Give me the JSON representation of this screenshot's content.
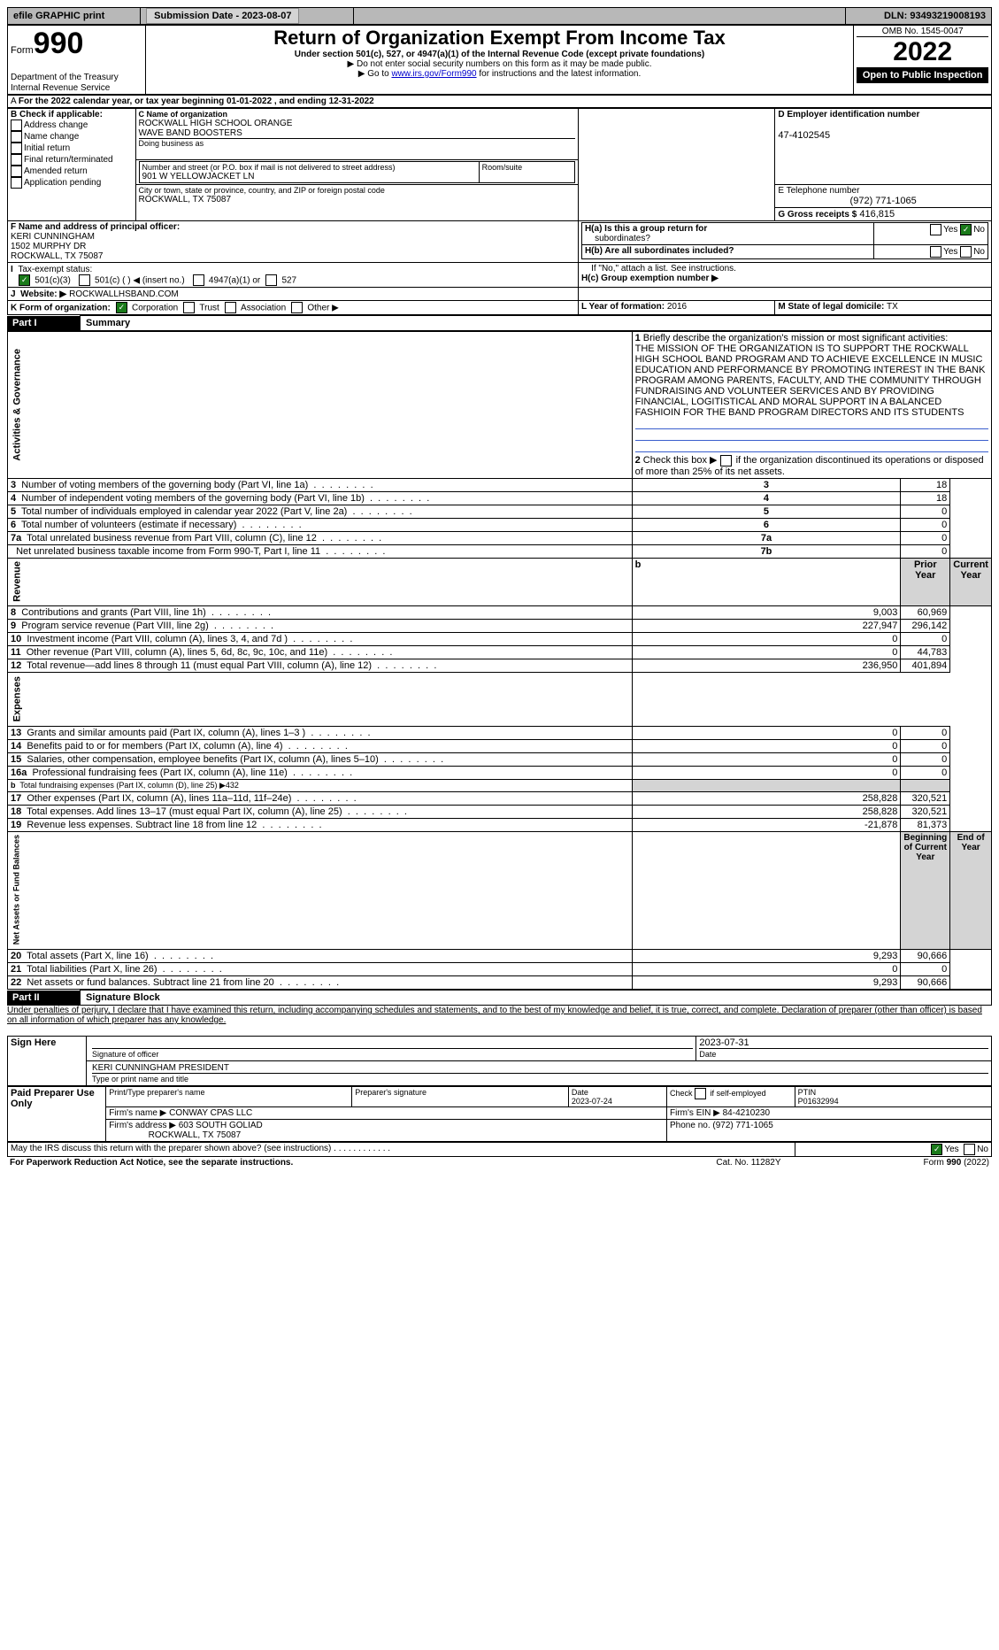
{
  "topbar": {
    "efile": "efile GRAPHIC print",
    "sub": "Submission Date - 2023-08-07",
    "dln": "DLN: 93493219008193"
  },
  "hdr": {
    "formword": "Form",
    "formnum": "990",
    "title": "Return of Organization Exempt From Income Tax",
    "sub1": "Under section 501(c), 527, or 4947(a)(1) of the Internal Revenue Code (except private foundations)",
    "sub2": "▶ Do not enter social security numbers on this form as it may be made public.",
    "sub3": "▶ Go to ",
    "sub3link": "www.irs.gov/Form990",
    "sub3b": " for instructions and the latest information.",
    "dept": "Department of the Treasury",
    "irs": "Internal Revenue Service",
    "omb": "OMB No. 1545-0047",
    "year": "2022",
    "open": "Open to Public Inspection"
  },
  "A": {
    "line": "For the 2022 calendar year, or tax year beginning 01-01-2022    , and ending 12-31-2022"
  },
  "B": {
    "hdr": "B Check if applicable:",
    "o": [
      "Address change",
      "Name change",
      "Initial return",
      "Final return/terminated",
      "Amended return",
      "Application pending"
    ]
  },
  "C": {
    "namelbl": "C Name of organization",
    "name1": "ROCKWALL HIGH SCHOOL ORANGE",
    "name2": "WAVE BAND BOOSTERS",
    "dba": "Doing business as",
    "streetlbl": "Number and street (or P.O. box if mail is not delivered to street address)",
    "street": "901 W YELLOWJACKET LN",
    "room": "Room/suite",
    "citylbl": "City or town, state or province, country, and ZIP or foreign postal code",
    "city": "ROCKWALL, TX  75087"
  },
  "D": {
    "lbl": "D Employer identification number",
    "val": "47-4102545"
  },
  "E": {
    "lbl": "E Telephone number",
    "val": "(972) 771-1065"
  },
  "G": {
    "lbl": "G Gross receipts $",
    "val": "416,815"
  },
  "F": {
    "lbl": "F  Name and address of principal officer:",
    "n": "KERI CUNNINGHAM",
    "a1": "1502 MURPHY DR",
    "a2": "ROCKWALL, TX  75087"
  },
  "H": {
    "a": "H(a)  Is this a group return for",
    "a2": "subordinates?",
    "b": "H(b)  Are all subordinates included?",
    "bnote": "If \"No,\" attach a list. See instructions.",
    "c": "H(c)  Group exemption number ▶",
    "yes": "Yes",
    "no": "No"
  },
  "I": {
    "lbl": "Tax-exempt status:",
    "o1": "501(c)(3)",
    "o2": "501(c) (  ) ◀ (insert no.)",
    "o3": "4947(a)(1) or",
    "o4": "527"
  },
  "J": {
    "lbl": "Website: ▶",
    "val": "ROCKWALLHSBAND.COM"
  },
  "K": {
    "lbl": "K Form of organization:",
    "o": [
      "Corporation",
      "Trust",
      "Association",
      "Other ▶"
    ]
  },
  "L": {
    "lbl": "L Year of formation:",
    "val": "2016"
  },
  "M": {
    "lbl": "M State of legal domicile:",
    "val": "TX"
  },
  "p1": {
    "bar": "Part I",
    "title": "Summary"
  },
  "s1": {
    "lbl": "1",
    "txt": "Briefly describe the organization's mission or most significant activities:",
    "val": "THE MISSION OF THE ORGANIZATION IS TO SUPPORT THE ROCKWALL HIGH SCHOOL BAND PROGRAM AND TO ACHIEVE EXCELLENCE IN MUSIC EDUCATION AND PERFORMANCE BY PROMOTING INTEREST IN THE BANK PROGRAM AMONG PARENTS, FACULTY, AND THE COMMUNITY THROUGH FUNDRAISING AND VOLUNTEER SERVICES AND BY PROVIDING FINANCIAL, LOGITISTICAL AND MORAL SUPPORT IN A BALANCED FASHIOIN FOR THE BAND PROGRAM DIRECTORS AND ITS STUDENTS"
  },
  "s2": {
    "lbl": "2",
    "txt": "Check this box ▶",
    "txt2": "if the organization discontinued its operations or disposed of more than 25% of its net assets."
  },
  "act": {
    "side": "Activities & Governance",
    "rows": [
      {
        "n": "3",
        "t": "Number of voting members of the governing body (Part VI, line 1a)",
        "box": "3",
        "v": "18"
      },
      {
        "n": "4",
        "t": "Number of independent voting members of the governing body (Part VI, line 1b)",
        "box": "4",
        "v": "18"
      },
      {
        "n": "5",
        "t": "Total number of individuals employed in calendar year 2022 (Part V, line 2a)",
        "box": "5",
        "v": "0"
      },
      {
        "n": "6",
        "t": "Total number of volunteers (estimate if necessary)",
        "box": "6",
        "v": "0"
      },
      {
        "n": "7a",
        "t": "Total unrelated business revenue from Part VIII, column (C), line 12",
        "box": "7a",
        "v": "0"
      },
      {
        "n": "",
        "t": "Net unrelated business taxable income from Form 990-T, Part I, line 11",
        "box": "7b",
        "v": "0"
      }
    ]
  },
  "rev": {
    "side": "Revenue",
    "b": "b",
    "ph": "Prior Year",
    "cy": "Current Year",
    "rows": [
      {
        "n": "8",
        "t": "Contributions and grants (Part VIII, line 1h)",
        "p": "9,003",
        "c": "60,969"
      },
      {
        "n": "9",
        "t": "Program service revenue (Part VIII, line 2g)",
        "p": "227,947",
        "c": "296,142"
      },
      {
        "n": "10",
        "t": "Investment income (Part VIII, column (A), lines 3, 4, and 7d )",
        "p": "0",
        "c": "0"
      },
      {
        "n": "11",
        "t": "Other revenue (Part VIII, column (A), lines 5, 6d, 8c, 9c, 10c, and 11e)",
        "p": "0",
        "c": "44,783"
      },
      {
        "n": "12",
        "t": "Total revenue—add lines 8 through 11 (must equal Part VIII, column (A), line 12)",
        "p": "236,950",
        "c": "401,894"
      }
    ]
  },
  "exp": {
    "side": "Expenses",
    "rows": [
      {
        "n": "13",
        "t": "Grants and similar amounts paid (Part IX, column (A), lines 1–3 )",
        "p": "0",
        "c": "0"
      },
      {
        "n": "14",
        "t": "Benefits paid to or for members (Part IX, column (A), line 4)",
        "p": "0",
        "c": "0"
      },
      {
        "n": "15",
        "t": "Salaries, other compensation, employee benefits (Part IX, column (A), lines 5–10)",
        "p": "0",
        "c": "0"
      },
      {
        "n": "16a",
        "t": "Professional fundraising fees (Part IX, column (A), line 11e)",
        "p": "0",
        "c": "0"
      },
      {
        "n": "b",
        "t": "Total fundraising expenses (Part IX, column (D), line 25) ▶432",
        "p": "",
        "c": "",
        "grey": true,
        "small": true
      },
      {
        "n": "17",
        "t": "Other expenses (Part IX, column (A), lines 11a–11d, 11f–24e)",
        "p": "258,828",
        "c": "320,521"
      },
      {
        "n": "18",
        "t": "Total expenses. Add lines 13–17 (must equal Part IX, column (A), line 25)",
        "p": "258,828",
        "c": "320,521"
      },
      {
        "n": "19",
        "t": "Revenue less expenses. Subtract line 18 from line 12",
        "p": "-21,878",
        "c": "81,373"
      }
    ]
  },
  "nab": {
    "side": "Net Assets or Fund Balances",
    "by": "Beginning of Current Year",
    "ey": "End of Year",
    "rows": [
      {
        "n": "20",
        "t": "Total assets (Part X, line 16)",
        "p": "9,293",
        "c": "90,666"
      },
      {
        "n": "21",
        "t": "Total liabilities (Part X, line 26)",
        "p": "0",
        "c": "0"
      },
      {
        "n": "22",
        "t": "Net assets or fund balances. Subtract line 21 from line 20",
        "p": "9,293",
        "c": "90,666"
      }
    ]
  },
  "p2": {
    "bar": "Part II",
    "title": "Signature Block",
    "decl": "Under penalties of perjury, I declare that I have examined this return, including accompanying schedules and statements, and to the best of my knowledge and belief, it is true, correct, and complete. Declaration of preparer (other than officer) is based on all information of which preparer has any knowledge."
  },
  "sign": {
    "here": "Sign Here",
    "siglbl": "Signature of officer",
    "datelbl": "Date",
    "date": "2023-07-31",
    "name": "KERI CUNNINGHAM  PRESIDENT",
    "namelbl": "Type or print name and title"
  },
  "prep": {
    "side": "Paid Preparer Use Only",
    "h": [
      "Print/Type preparer's name",
      "Preparer's signature",
      "Date",
      "",
      "PTIN"
    ],
    "date": "2023-07-24",
    "chk": "Check",
    "chk2": "if self-employed",
    "ptin": "P01632994",
    "firm": "Firm's name   ▶",
    "firmv": "CONWAY CPAS LLC",
    "ein": "Firm's EIN ▶",
    "einv": "84-4210230",
    "addr": "Firm's address ▶",
    "addrv": "603 SOUTH GOLIAD",
    "addr2": "ROCKWALL, TX  75087",
    "phone": "Phone no.",
    "phonev": "(972) 771-1065"
  },
  "foot": {
    "q": "May the IRS discuss this return with the preparer shown above? (see instructions)",
    "yes": "Yes",
    "no": "No",
    "pra": "For Paperwork Reduction Act Notice, see the separate instructions.",
    "cat": "Cat. No. 11282Y",
    "form": "Form 990 (2022)"
  }
}
